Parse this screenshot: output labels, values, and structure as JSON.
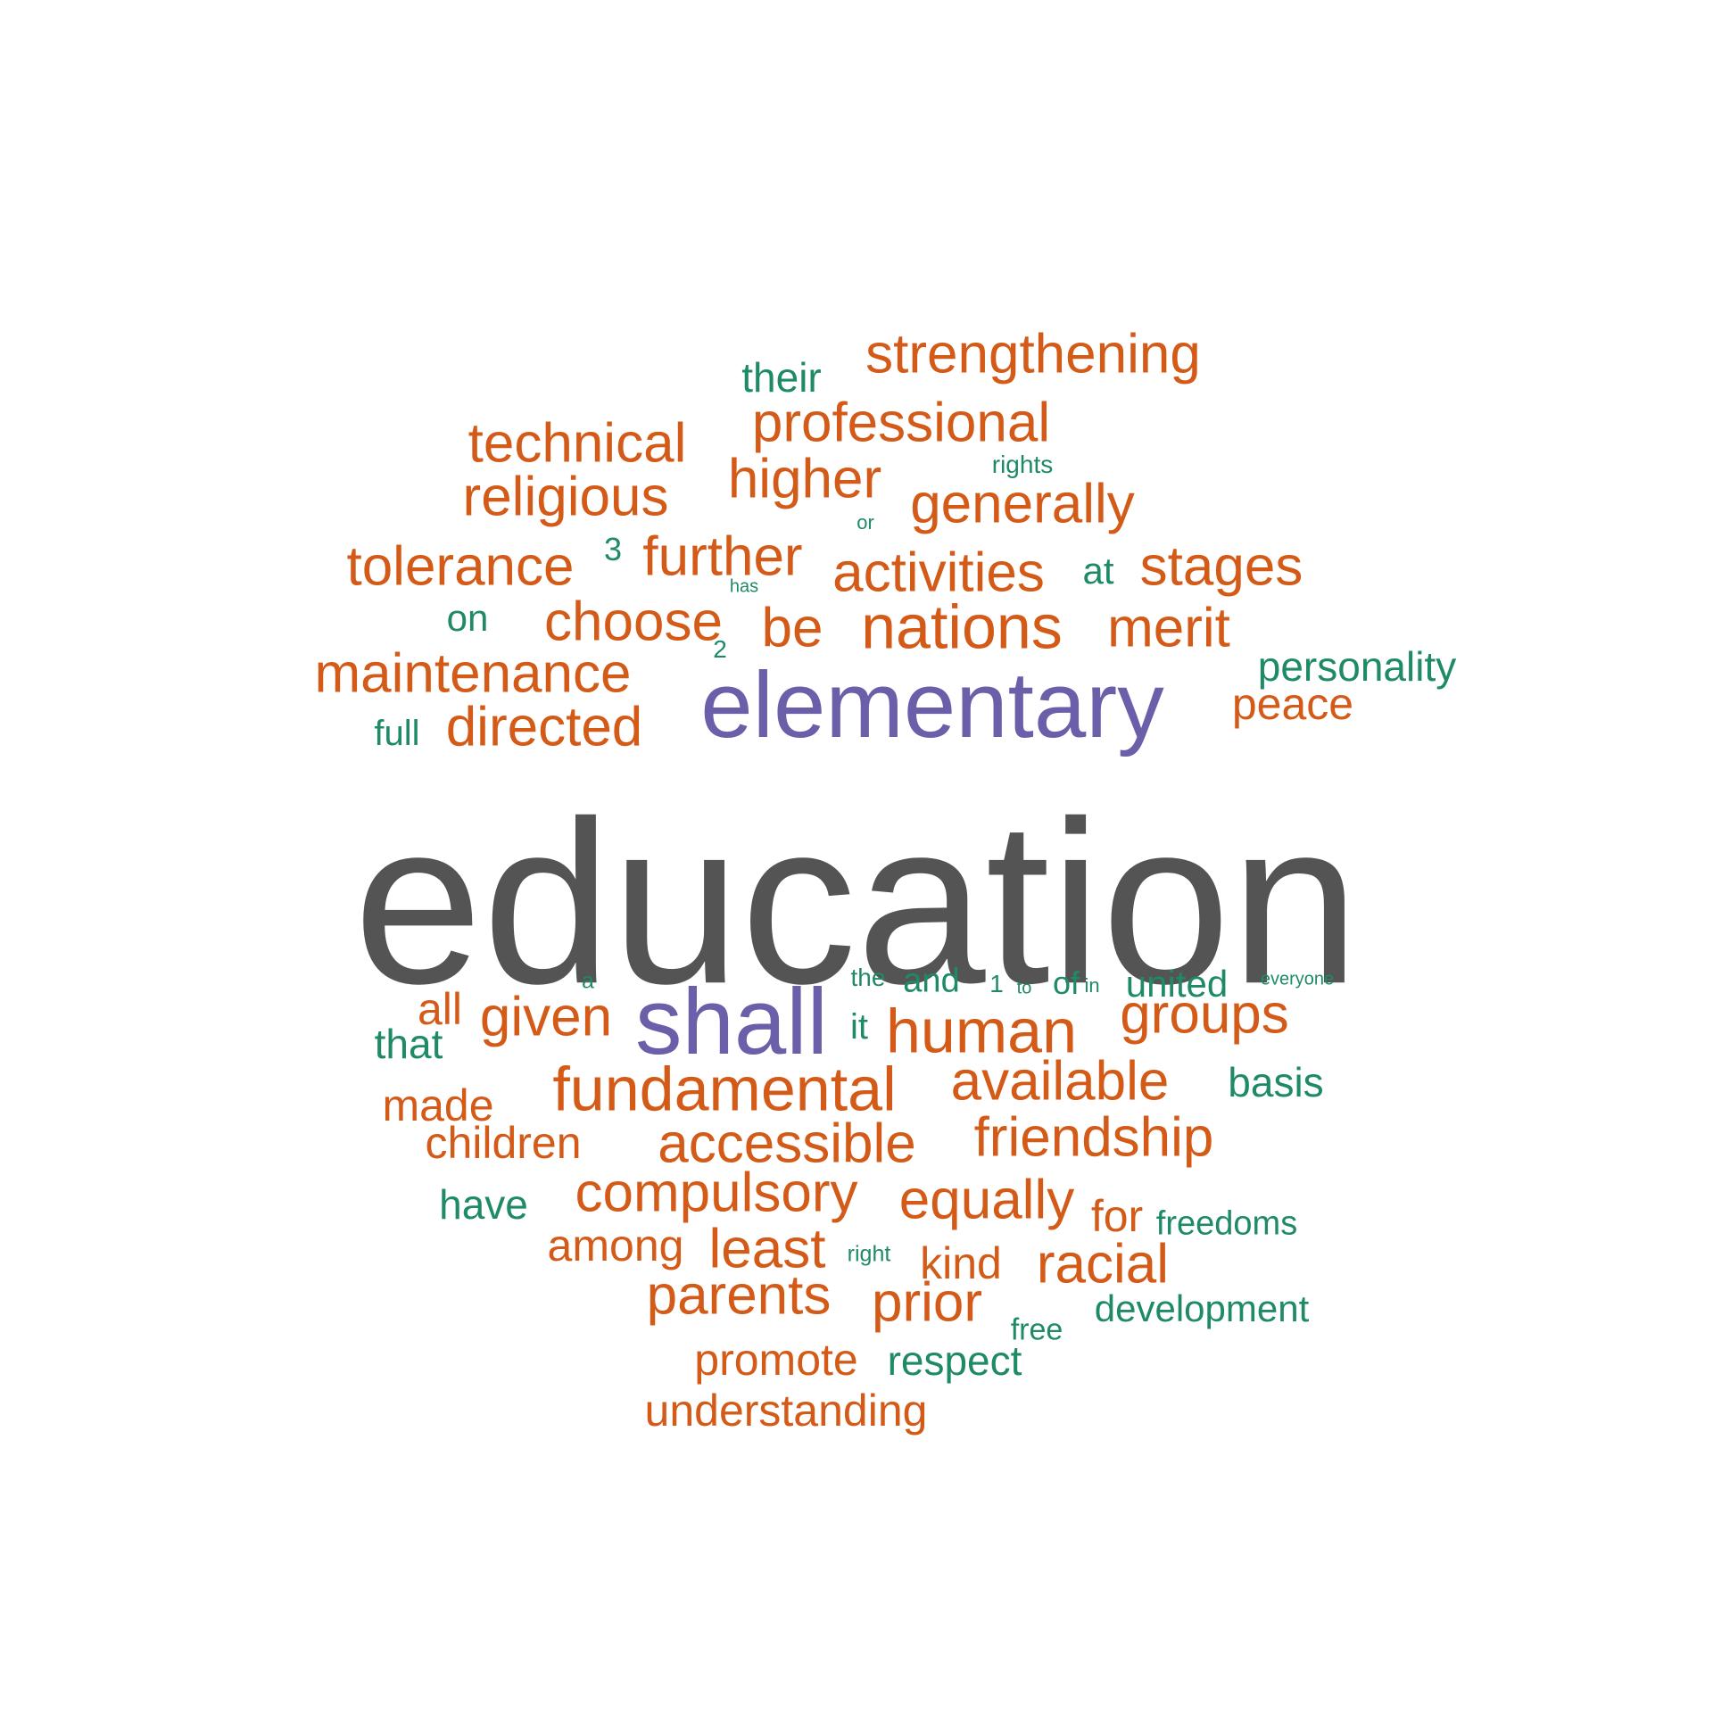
{
  "colors": {
    "top": "#545454",
    "second": "#6a5fa8",
    "mid": "#d45a18",
    "low": "#1f8a68"
  },
  "words": [
    {
      "id": "education",
      "text": "education",
      "tier": "top"
    },
    {
      "id": "elementary",
      "text": "elementary",
      "tier": "second"
    },
    {
      "id": "shall",
      "text": "shall",
      "tier": "second"
    },
    {
      "id": "strengthening",
      "text": "strengthening",
      "tier": "mid"
    },
    {
      "id": "professional",
      "text": "professional",
      "tier": "mid"
    },
    {
      "id": "technical",
      "text": "technical",
      "tier": "mid"
    },
    {
      "id": "religious",
      "text": "religious",
      "tier": "mid"
    },
    {
      "id": "higher",
      "text": "higher",
      "tier": "mid"
    },
    {
      "id": "generally",
      "text": "generally",
      "tier": "mid"
    },
    {
      "id": "tolerance",
      "text": "tolerance",
      "tier": "mid"
    },
    {
      "id": "further",
      "text": "further",
      "tier": "mid"
    },
    {
      "id": "activities",
      "text": "activities",
      "tier": "mid"
    },
    {
      "id": "stages",
      "text": "stages",
      "tier": "mid"
    },
    {
      "id": "choose",
      "text": "choose",
      "tier": "mid"
    },
    {
      "id": "be",
      "text": "be",
      "tier": "mid"
    },
    {
      "id": "nations",
      "text": "nations",
      "tier": "mid"
    },
    {
      "id": "merit",
      "text": "merit",
      "tier": "mid"
    },
    {
      "id": "maintenance",
      "text": "maintenance",
      "tier": "mid"
    },
    {
      "id": "peace",
      "text": "peace",
      "tier": "mid"
    },
    {
      "id": "directed",
      "text": "directed",
      "tier": "mid"
    },
    {
      "id": "all",
      "text": "all",
      "tier": "mid"
    },
    {
      "id": "given",
      "text": "given",
      "tier": "mid"
    },
    {
      "id": "human",
      "text": "human",
      "tier": "mid"
    },
    {
      "id": "groups",
      "text": "groups",
      "tier": "mid"
    },
    {
      "id": "fundamental",
      "text": "fundamental",
      "tier": "mid"
    },
    {
      "id": "available",
      "text": "available",
      "tier": "mid"
    },
    {
      "id": "made",
      "text": "made",
      "tier": "mid"
    },
    {
      "id": "children",
      "text": "children",
      "tier": "mid"
    },
    {
      "id": "accessible",
      "text": "accessible",
      "tier": "mid"
    },
    {
      "id": "friendship",
      "text": "friendship",
      "tier": "mid"
    },
    {
      "id": "compulsory",
      "text": "compulsory",
      "tier": "mid"
    },
    {
      "id": "equally",
      "text": "equally",
      "tier": "mid"
    },
    {
      "id": "for",
      "text": "for",
      "tier": "mid"
    },
    {
      "id": "among",
      "text": "among",
      "tier": "mid"
    },
    {
      "id": "least",
      "text": "least",
      "tier": "mid"
    },
    {
      "id": "kind",
      "text": "kind",
      "tier": "mid"
    },
    {
      "id": "racial",
      "text": "racial",
      "tier": "mid"
    },
    {
      "id": "parents",
      "text": "parents",
      "tier": "mid"
    },
    {
      "id": "prior",
      "text": "prior",
      "tier": "mid"
    },
    {
      "id": "promote",
      "text": "promote",
      "tier": "mid"
    },
    {
      "id": "understanding",
      "text": "understanding",
      "tier": "mid"
    },
    {
      "id": "their",
      "text": "their",
      "tier": "low"
    },
    {
      "id": "rights",
      "text": "rights",
      "tier": "low"
    },
    {
      "id": "or",
      "text": "or",
      "tier": "low"
    },
    {
      "id": "3",
      "text": "3",
      "tier": "low"
    },
    {
      "id": "has",
      "text": "has",
      "tier": "low"
    },
    {
      "id": "at",
      "text": "at",
      "tier": "low"
    },
    {
      "id": "on",
      "text": "on",
      "tier": "low"
    },
    {
      "id": "2",
      "text": "2",
      "tier": "low"
    },
    {
      "id": "personality",
      "text": "personality",
      "tier": "low"
    },
    {
      "id": "full",
      "text": "full",
      "tier": "low"
    },
    {
      "id": "a",
      "text": "a",
      "tier": "low"
    },
    {
      "id": "the",
      "text": "the",
      "tier": "low"
    },
    {
      "id": "and",
      "text": "and",
      "tier": "low"
    },
    {
      "id": "1",
      "text": "1",
      "tier": "low"
    },
    {
      "id": "to",
      "text": "to",
      "tier": "low"
    },
    {
      "id": "of",
      "text": "of",
      "tier": "low"
    },
    {
      "id": "in",
      "text": "in",
      "tier": "low"
    },
    {
      "id": "united",
      "text": "united",
      "tier": "low"
    },
    {
      "id": "everyone",
      "text": "everyone",
      "tier": "low"
    },
    {
      "id": "it",
      "text": "it",
      "tier": "low"
    },
    {
      "id": "that",
      "text": "that",
      "tier": "low"
    },
    {
      "id": "basis",
      "text": "basis",
      "tier": "low"
    },
    {
      "id": "have",
      "text": "have",
      "tier": "low"
    },
    {
      "id": "freedoms",
      "text": "freedoms",
      "tier": "low"
    },
    {
      "id": "right",
      "text": "right",
      "tier": "low"
    },
    {
      "id": "free",
      "text": "free",
      "tier": "low"
    },
    {
      "id": "development",
      "text": "development",
      "tier": "low"
    },
    {
      "id": "respect",
      "text": "respect",
      "tier": "low"
    }
  ]
}
